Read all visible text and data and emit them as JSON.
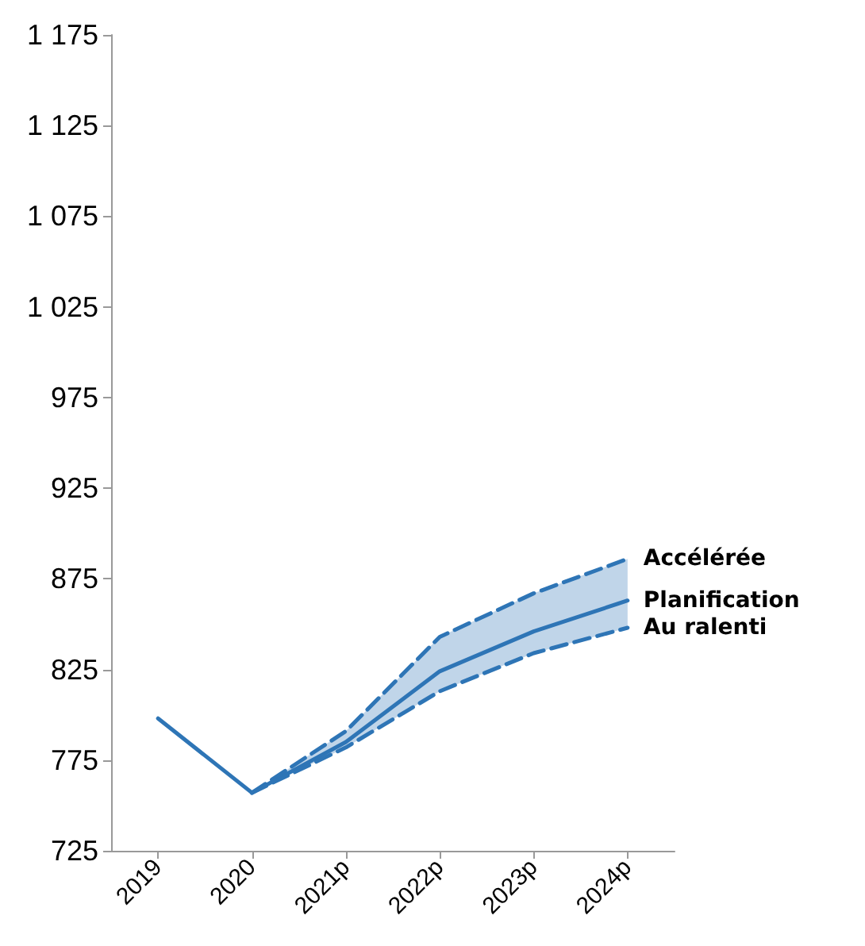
{
  "chart_data": {
    "type": "line",
    "categories": [
      "2019",
      "2020",
      "2021p",
      "2022p",
      "2023p",
      "2024p"
    ],
    "series": [
      {
        "name": "Accélérée",
        "color": "#2e75b6",
        "line_style": "dashed",
        "values": [
          null,
          757,
          791,
          843,
          867,
          886
        ]
      },
      {
        "name": "Planification",
        "color": "#2e75b6",
        "line_style": "solid",
        "values": [
          798,
          757,
          785,
          824,
          846,
          863
        ],
        "lower": [
          null,
          757,
          782,
          813,
          834,
          848
        ],
        "upper": [
          null,
          757,
          791,
          843,
          867,
          886
        ]
      },
      {
        "name": "Au ralenti",
        "color": "#2e75b6",
        "line_style": "dashed",
        "values": [
          null,
          757,
          782,
          813,
          834,
          848
        ]
      }
    ],
    "ylim": [
      725,
      1175
    ],
    "yticks": [
      725,
      775,
      825,
      875,
      925,
      975,
      {
        "value": 1025,
        "label": "1 025"
      },
      {
        "value": 1075,
        "label": "1 075"
      },
      {
        "value": 1125,
        "label": "1 125"
      },
      {
        "value": 1175,
        "label": "1 175"
      }
    ],
    "grid": false,
    "marker": "none"
  }
}
